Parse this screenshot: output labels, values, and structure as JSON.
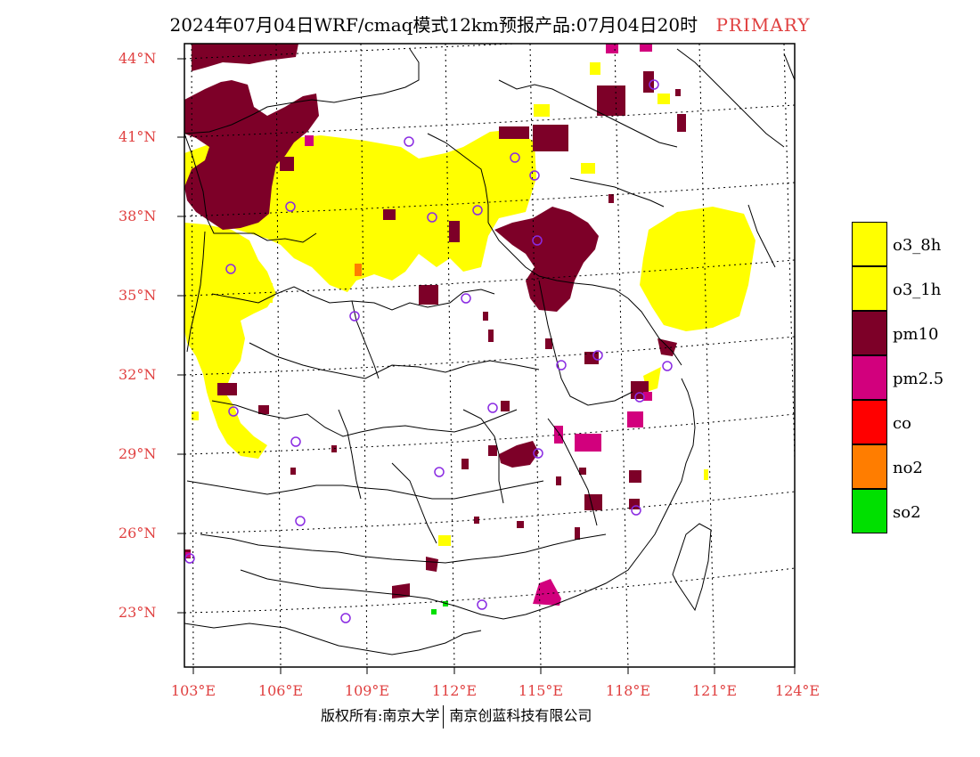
{
  "title": {
    "main": "2024年07月04日WRF/cmaq模式12km预报产品:07月04日20时",
    "tag": "PRIMARY"
  },
  "lat_labels": [
    "44°N",
    "41°N",
    "38°N",
    "35°N",
    "32°N",
    "29°N",
    "26°N",
    "23°N"
  ],
  "lon_labels": [
    "103°E",
    "106°E",
    "109°E",
    "112°E",
    "115°E",
    "118°E",
    "121°E",
    "124°E"
  ],
  "legend": [
    {
      "label": "o3_8h",
      "color": "#ffff00"
    },
    {
      "label": "o3_1h",
      "color": "#ffff00"
    },
    {
      "label": "pm10",
      "color": "#7d0028"
    },
    {
      "label": "pm2.5",
      "color": "#d2007d"
    },
    {
      "label": "co",
      "color": "#ff0000"
    },
    {
      "label": "no2",
      "color": "#ff7d00"
    },
    {
      "label": "so2",
      "color": "#00e000"
    }
  ],
  "footer": {
    "left": "版权所有:南京大学",
    "right": "南京创蓝科技有限公司"
  }
}
